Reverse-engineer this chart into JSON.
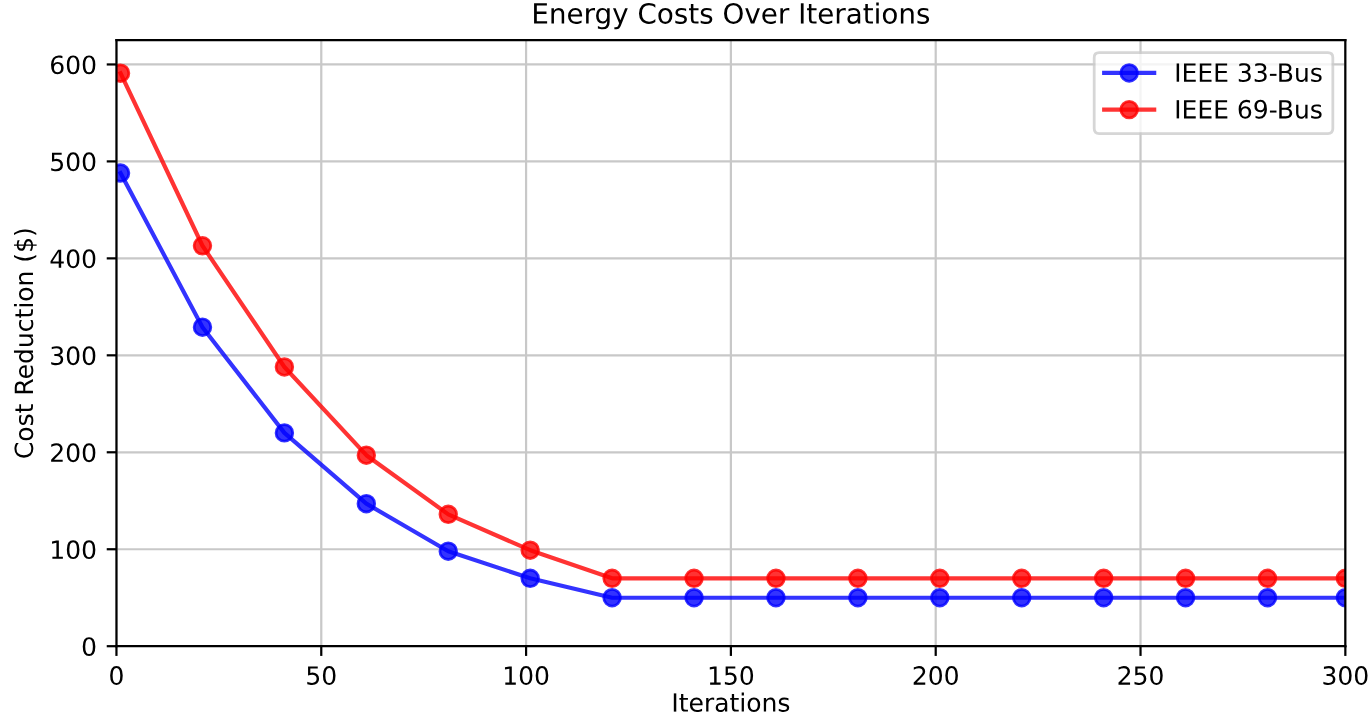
{
  "chart_data": {
    "type": "line",
    "title": "Energy Costs Over Iterations",
    "xlabel": "Iterations",
    "ylabel": "Cost Reduction ($)",
    "x": [
      1,
      21,
      41,
      61,
      81,
      101,
      121,
      141,
      161,
      181,
      201,
      221,
      241,
      261,
      281,
      300
    ],
    "series": [
      {
        "name": "IEEE 33-Bus",
        "color": "#0000ff",
        "values": [
          488,
          329,
          220,
          147,
          98,
          70,
          50,
          50,
          50,
          50,
          50,
          50,
          50,
          50,
          50,
          50
        ]
      },
      {
        "name": "IEEE 69-Bus",
        "color": "#ff0000",
        "values": [
          591,
          413,
          288,
          197,
          136,
          99,
          70,
          70,
          70,
          70,
          70,
          70,
          70,
          70,
          70,
          70
        ]
      }
    ],
    "xlim": [
      0,
      300
    ],
    "xticks": [
      0,
      50,
      100,
      150,
      200,
      250,
      300
    ],
    "ylim": [
      0,
      625
    ],
    "yticks": [
      0,
      100,
      200,
      300,
      400,
      500,
      600
    ],
    "grid": true,
    "legend": "top right",
    "marker": "circle",
    "line_style": "solid"
  }
}
